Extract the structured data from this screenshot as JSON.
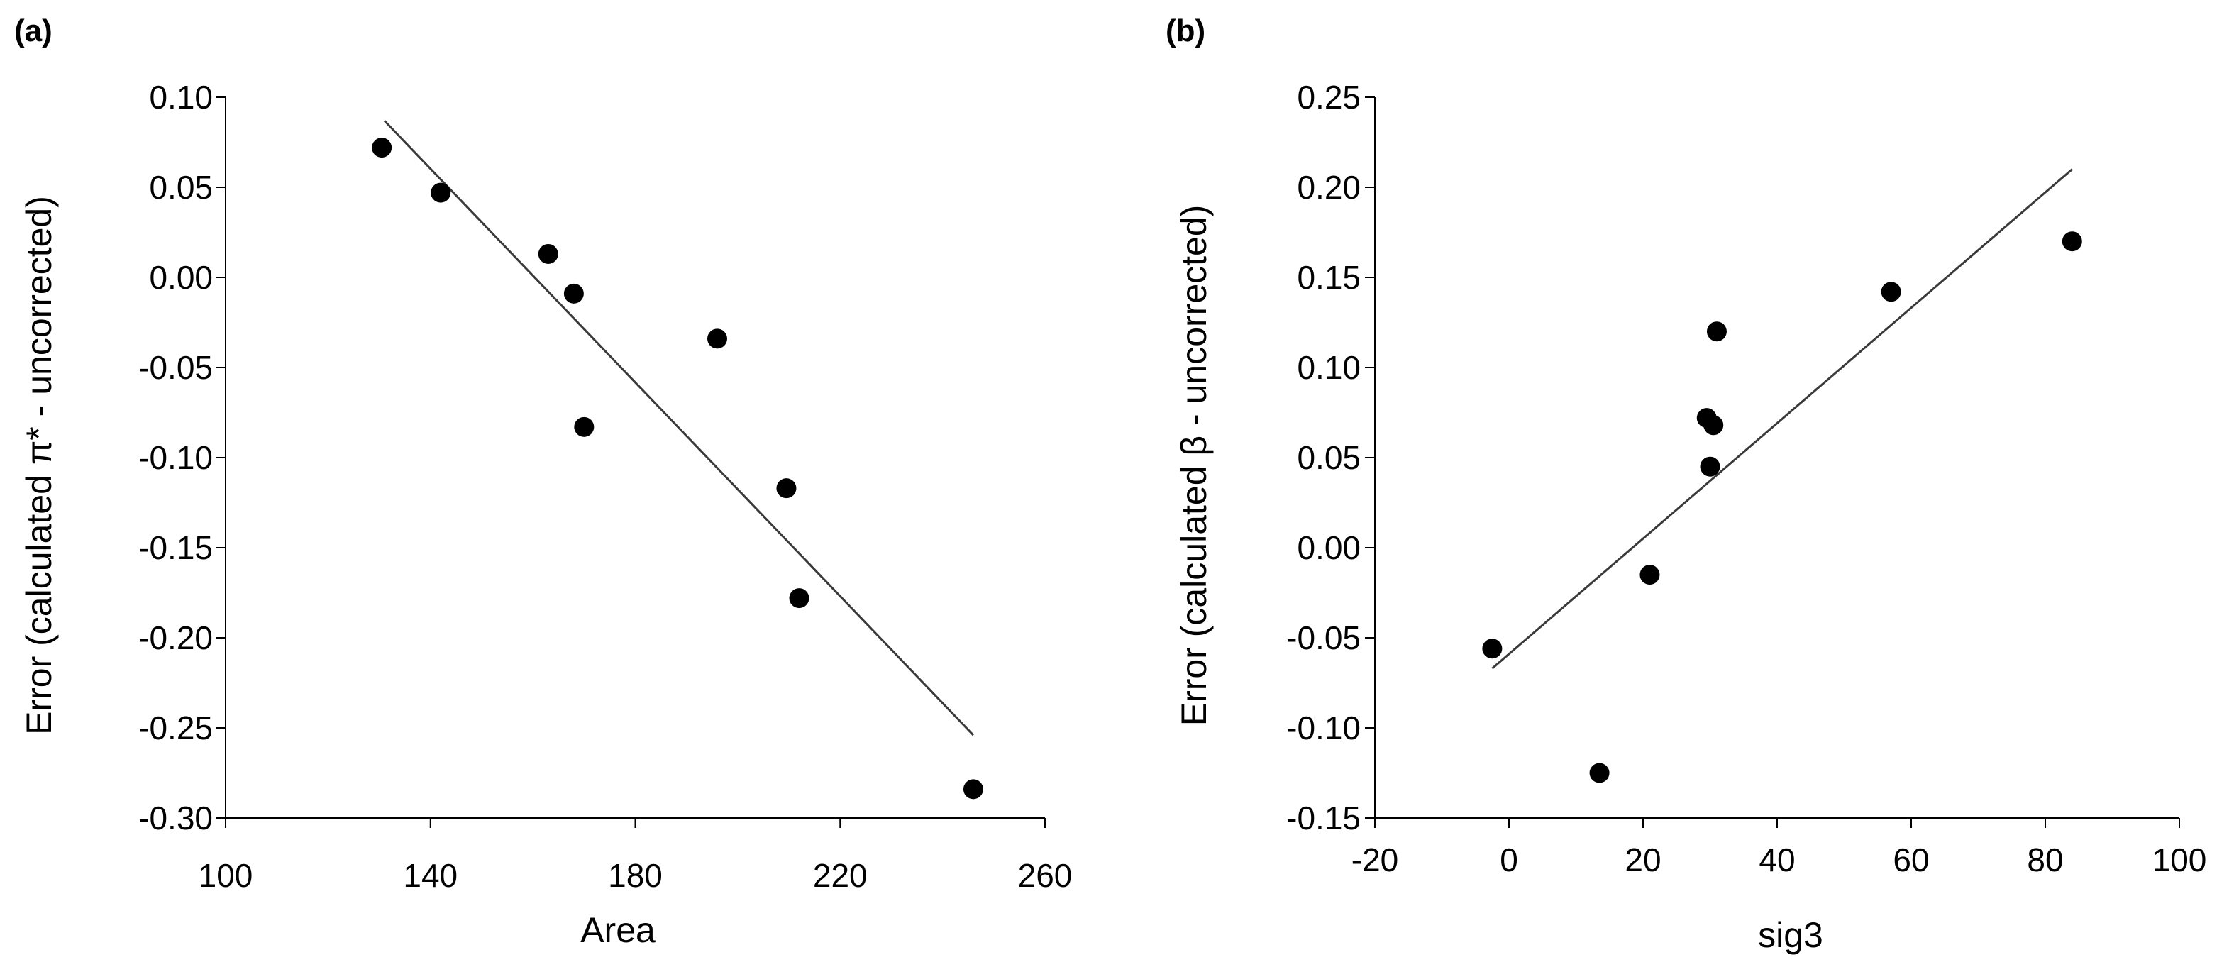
{
  "chart_data": [
    {
      "type": "scatter",
      "panel_label": "(a)",
      "title": "",
      "xlabel": "Area",
      "ylabel": "Error (calculated π* - uncorrected)",
      "xlim": [
        100,
        260
      ],
      "ylim": [
        -0.3,
        0.1
      ],
      "x_ticks": [
        100,
        140,
        180,
        220,
        260
      ],
      "y_ticks": [
        0.1,
        0.05,
        0.0,
        -0.05,
        -0.1,
        -0.15,
        -0.2,
        -0.25,
        -0.3
      ],
      "x_tick_labels": [
        "100",
        "140",
        "180",
        "220",
        "260"
      ],
      "y_tick_labels": [
        "0.10",
        "0.05",
        "0.00",
        "-0.05",
        "-0.10",
        "-0.15",
        "-0.20",
        "-0.25",
        "-0.30"
      ],
      "grid": false,
      "points": [
        {
          "x": 130.5,
          "y": 0.072
        },
        {
          "x": 142,
          "y": 0.047
        },
        {
          "x": 163,
          "y": 0.013
        },
        {
          "x": 168,
          "y": -0.009
        },
        {
          "x": 170,
          "y": -0.083
        },
        {
          "x": 196,
          "y": -0.034
        },
        {
          "x": 209.5,
          "y": -0.117
        },
        {
          "x": 212,
          "y": -0.178
        },
        {
          "x": 246,
          "y": -0.284
        }
      ],
      "trendline": {
        "x": [
          131,
          246
        ],
        "y": [
          0.087,
          -0.254
        ]
      }
    },
    {
      "type": "scatter",
      "panel_label": "(b)",
      "title": "",
      "xlabel": "sig3",
      "ylabel": "Error (calculated β - uncorrected)",
      "xlim": [
        -20,
        100
      ],
      "ylim": [
        -0.15,
        0.25
      ],
      "x_ticks": [
        -20,
        0,
        20,
        40,
        60,
        80,
        100
      ],
      "y_ticks": [
        0.25,
        0.2,
        0.15,
        0.1,
        0.05,
        0.0,
        -0.05,
        -0.1,
        -0.15
      ],
      "x_tick_labels": [
        "-20",
        "0",
        "20",
        "40",
        "60",
        "80",
        "100"
      ],
      "y_tick_labels": [
        "0.25",
        "0.20",
        "0.15",
        "0.10",
        "0.05",
        "0.00",
        "-0.05",
        "-0.10",
        "-0.15"
      ],
      "grid": false,
      "points": [
        {
          "x": -2.5,
          "y": -0.056
        },
        {
          "x": 13.5,
          "y": -0.125
        },
        {
          "x": 21,
          "y": -0.015
        },
        {
          "x": 29.5,
          "y": 0.072
        },
        {
          "x": 30,
          "y": 0.045
        },
        {
          "x": 30.5,
          "y": 0.068
        },
        {
          "x": 31,
          "y": 0.12
        },
        {
          "x": 57,
          "y": 0.142
        },
        {
          "x": 84,
          "y": 0.17
        }
      ],
      "trendline": {
        "x": [
          -2.5,
          84
        ],
        "y": [
          -0.067,
          0.21
        ]
      }
    }
  ]
}
